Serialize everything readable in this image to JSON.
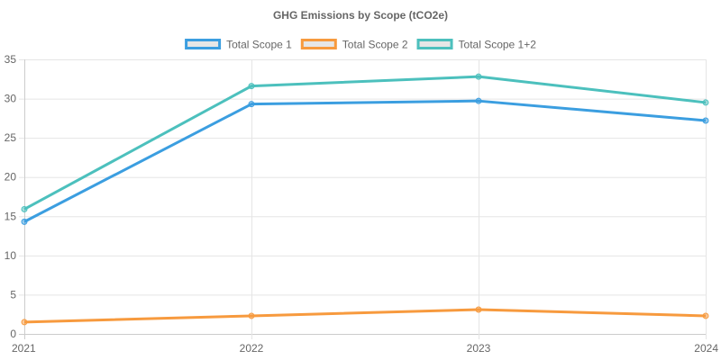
{
  "chart_data": {
    "type": "line",
    "title": "GHG Emissions by Scope (tCO2e)",
    "xlabel": "",
    "ylabel": "",
    "categories": [
      "2021",
      "2022",
      "2023",
      "2024"
    ],
    "ylim": [
      0,
      35
    ],
    "yticks": [
      0,
      5,
      10,
      15,
      20,
      25,
      30,
      35
    ],
    "grid": true,
    "legend_position": "top",
    "series": [
      {
        "name": "Total Scope 1",
        "color": "#3b9ee0",
        "values": [
          14.3,
          29.3,
          29.7,
          27.2
        ]
      },
      {
        "name": "Total Scope 2",
        "color": "#f79a3e",
        "values": [
          1.5,
          2.3,
          3.1,
          2.3
        ]
      },
      {
        "name": "Total Scope 1+2",
        "color": "#4cc0bd",
        "values": [
          15.9,
          31.6,
          32.8,
          29.5
        ]
      }
    ],
    "legend_swatch_fill": "#e6e6e6"
  }
}
